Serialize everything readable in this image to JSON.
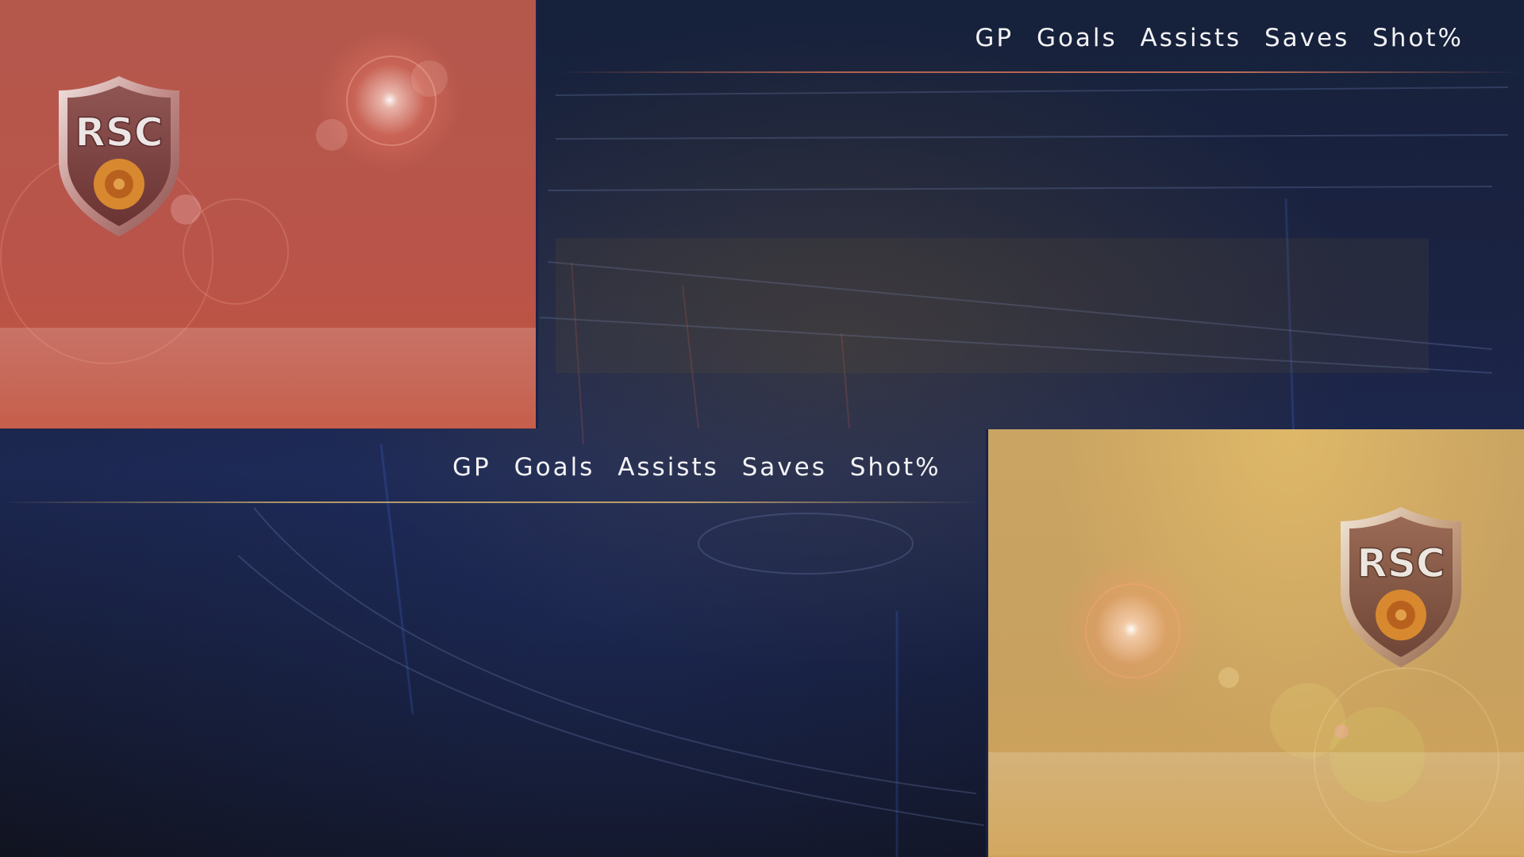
{
  "top_section": {
    "team_logo_text": "RSC",
    "stat_headers": [
      "GP",
      "Goals",
      "Assists",
      "Saves",
      "Shot%"
    ],
    "panel_color": "#b9544a",
    "accent_line_color": "#ff8c64"
  },
  "bottom_section": {
    "team_logo_text": "RSC",
    "stat_headers": [
      "GP",
      "Goals",
      "Assists",
      "Saves",
      "Shot%"
    ],
    "panel_color": "#c8a160",
    "accent_line_color": "#e6be6e"
  },
  "background": {
    "theme": "stadium-arena-night",
    "base_color": "#1b2342"
  }
}
